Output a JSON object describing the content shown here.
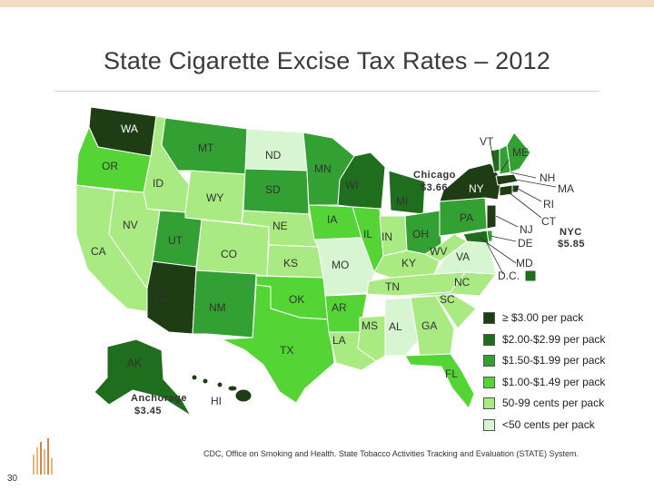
{
  "title": "State Cigarette Excise Tax Rates – 2012",
  "colors": {
    "c5": "#1e3d14",
    "c4": "#1e6e1e",
    "c3": "#33a033",
    "c2": "#55d535",
    "c1": "#a9ea82",
    "c0": "#d8f5d2"
  },
  "states": [
    {
      "code": "WA",
      "category": "c5"
    },
    {
      "code": "OR",
      "category": "c2"
    },
    {
      "code": "CA",
      "category": "c1"
    },
    {
      "code": "ID",
      "category": "c1"
    },
    {
      "code": "NV",
      "category": "c1"
    },
    {
      "code": "AZ",
      "category": "c5"
    },
    {
      "code": "MT",
      "category": "c3"
    },
    {
      "code": "WY",
      "category": "c1"
    },
    {
      "code": "UT",
      "category": "c3"
    },
    {
      "code": "CO",
      "category": "c1"
    },
    {
      "code": "NM",
      "category": "c3"
    },
    {
      "code": "ND",
      "category": "c0"
    },
    {
      "code": "SD",
      "category": "c3"
    },
    {
      "code": "NE",
      "category": "c1"
    },
    {
      "code": "KS",
      "category": "c1"
    },
    {
      "code": "OK",
      "category": "c2"
    },
    {
      "code": "TX",
      "category": "c2"
    },
    {
      "code": "MN",
      "category": "c3"
    },
    {
      "code": "IA",
      "category": "c2"
    },
    {
      "code": "MO",
      "category": "c0"
    },
    {
      "code": "AR",
      "category": "c2"
    },
    {
      "code": "LA",
      "category": "c1"
    },
    {
      "code": "WI",
      "category": "c4"
    },
    {
      "code": "IL",
      "category": "c2"
    },
    {
      "code": "MS",
      "category": "c1"
    },
    {
      "code": "MI",
      "category": "c4"
    },
    {
      "code": "IN",
      "category": "c1"
    },
    {
      "code": "OH",
      "category": "c3"
    },
    {
      "code": "KY",
      "category": "c1"
    },
    {
      "code": "TN",
      "category": "c1"
    },
    {
      "code": "AL",
      "category": "c0"
    },
    {
      "code": "GA",
      "category": "c1"
    },
    {
      "code": "FL",
      "category": "c2"
    },
    {
      "code": "SC",
      "category": "c1"
    },
    {
      "code": "NC",
      "category": "c1"
    },
    {
      "code": "VA",
      "category": "c0"
    },
    {
      "code": "WV",
      "category": "c1"
    },
    {
      "code": "PA",
      "category": "c3"
    },
    {
      "code": "NY",
      "category": "c5"
    },
    {
      "code": "VT",
      "category": "c4"
    },
    {
      "code": "NH",
      "category": "c3"
    },
    {
      "code": "ME",
      "category": "c3"
    },
    {
      "code": "MA",
      "category": "c5"
    },
    {
      "code": "RI",
      "category": "c5"
    },
    {
      "code": "CT",
      "category": "c5"
    },
    {
      "code": "NJ",
      "category": "c5"
    },
    {
      "code": "DE",
      "category": "c3"
    },
    {
      "code": "MD",
      "category": "c4"
    },
    {
      "code": "D.C.",
      "category": "c4"
    },
    {
      "code": "AK",
      "category": "c4"
    },
    {
      "code": "HI",
      "category": "c5"
    }
  ],
  "notes": {
    "chicago_label": "Chicago",
    "chicago_value": "$3.66",
    "nyc_label": "NYC",
    "nyc_value": "$5.85",
    "anchorage_label": "Anchorage",
    "anchorage_value": "$3.45"
  },
  "legend": [
    {
      "label": "≥ $3.00 per pack",
      "category": "c5"
    },
    {
      "label": "$2.00-$2.99 per pack",
      "category": "c4"
    },
    {
      "label": "$1.50-$1.99 per pack",
      "category": "c3"
    },
    {
      "label": "$1.00-$1.49 per pack",
      "category": "c2"
    },
    {
      "label": "50-99 cents per pack",
      "category": "c1"
    },
    {
      "label": "<50 cents per pack",
      "category": "c0"
    }
  ],
  "source": "CDC, Office on Smoking and Health. State Tobacco Activities Tracking and Evaluation (STATE) System.",
  "page_number": "30"
}
